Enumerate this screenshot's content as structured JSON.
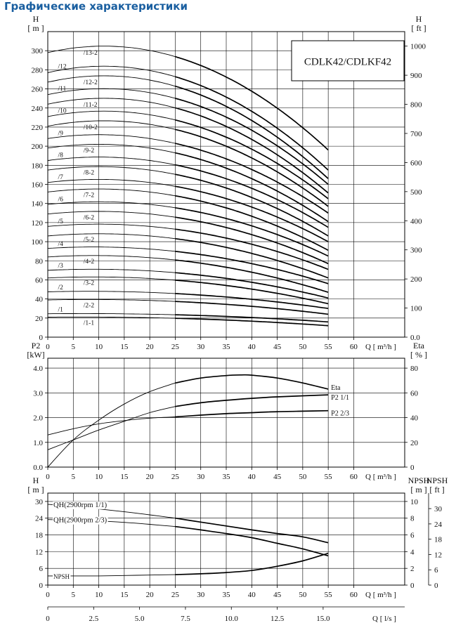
{
  "page": {
    "title": "Графические характеристики"
  },
  "chart_data": [
    {
      "id": "head",
      "type": "line",
      "title": "CDLK42/CDLKF42",
      "ylabel_left": [
        "H",
        "[ m ]"
      ],
      "ylabel_right": [
        "H",
        "[ ft ]"
      ],
      "xlabel": "Q  [ m³/h ]",
      "xlim": [
        0,
        70
      ],
      "ylim": [
        0,
        320
      ],
      "ylim_right": [
        0,
        1049.9
      ],
      "x_ticks": [
        0,
        5,
        10,
        15,
        20,
        25,
        30,
        35,
        40,
        45,
        50,
        55,
        60
      ],
      "y_ticks": [
        0,
        20,
        40,
        60,
        80,
        100,
        120,
        140,
        160,
        180,
        200,
        220,
        240,
        260,
        280,
        300
      ],
      "y_ticks_right": [
        0,
        100,
        200,
        300,
        400,
        500,
        600,
        700,
        800,
        900,
        1000
      ],
      "y_tick_labels_right": [
        "0.0",
        "100",
        "200",
        "300",
        "400",
        "500",
        "600",
        "700",
        "800",
        "900",
        "1000"
      ],
      "grid": true,
      "q_end": 55,
      "series": [
        {
          "name": "/1-1",
          "shutoff": 21,
          "peak_q": 6,
          "end": 12
        },
        {
          "name": "/1",
          "shutoff": 24.5,
          "peak_q": 7,
          "end": 16
        },
        {
          "name": "/2-2",
          "shutoff": 39,
          "peak_q": 8,
          "end": 24
        },
        {
          "name": "/2",
          "shutoff": 47.5,
          "peak_q": 8,
          "end": 30
        },
        {
          "name": "/3-2",
          "shutoff": 62,
          "peak_q": 9,
          "end": 35
        },
        {
          "name": "/3",
          "shutoff": 70,
          "peak_q": 9,
          "end": 41
        },
        {
          "name": "/4-2",
          "shutoff": 84,
          "peak_q": 9,
          "end": 47
        },
        {
          "name": "/4",
          "shutoff": 93,
          "peak_q": 9,
          "end": 56
        },
        {
          "name": "/5-2",
          "shutoff": 106,
          "peak_q": 10,
          "end": 62
        },
        {
          "name": "/5",
          "shutoff": 116,
          "peak_q": 10,
          "end": 71
        },
        {
          "name": "/6-2",
          "shutoff": 129,
          "peak_q": 10,
          "end": 77
        },
        {
          "name": "/6",
          "shutoff": 139,
          "peak_q": 10,
          "end": 85
        },
        {
          "name": "/7-2",
          "shutoff": 152,
          "peak_q": 10,
          "end": 91
        },
        {
          "name": "/7",
          "shutoff": 162,
          "peak_q": 10,
          "end": 100
        },
        {
          "name": "/8-2",
          "shutoff": 175,
          "peak_q": 10,
          "end": 106
        },
        {
          "name": "/8",
          "shutoff": 185,
          "peak_q": 10,
          "end": 115
        },
        {
          "name": "/9-2",
          "shutoff": 198,
          "peak_q": 10,
          "end": 121
        },
        {
          "name": "/9",
          "shutoff": 208,
          "peak_q": 10,
          "end": 130
        },
        {
          "name": "/10-2",
          "shutoff": 221,
          "peak_q": 11,
          "end": 137
        },
        {
          "name": "/10",
          "shutoff": 231,
          "peak_q": 11,
          "end": 145
        },
        {
          "name": "/11-2",
          "shutoff": 244,
          "peak_q": 11,
          "end": 151
        },
        {
          "name": "/11",
          "shutoff": 254,
          "peak_q": 11,
          "end": 160
        },
        {
          "name": "/12-2",
          "shutoff": 267,
          "peak_q": 11,
          "end": 166
        },
        {
          "name": "/12",
          "shutoff": 277,
          "peak_q": 11,
          "end": 175
        },
        {
          "name": "/13-2",
          "shutoff": 298,
          "peak_q": 11,
          "end": 196
        }
      ]
    },
    {
      "id": "power",
      "type": "line",
      "ylabel_left": [
        "P2",
        "[kW]"
      ],
      "ylabel_right": [
        "Eta",
        "[ % ]"
      ],
      "xlabel": "Q  [ m³/h ]",
      "xlim": [
        0,
        70
      ],
      "ylim": [
        0,
        4.4
      ],
      "ylim_right": [
        0,
        88
      ],
      "x_ticks": [
        0,
        5,
        10,
        15,
        20,
        25,
        30,
        35,
        40,
        45,
        50,
        55,
        60
      ],
      "y_ticks": [
        0,
        1,
        2,
        3,
        4
      ],
      "y_tick_labels": [
        "0.0",
        "1.0",
        "2.0",
        "3.0",
        "4.0"
      ],
      "y_ticks_right": [
        0,
        20,
        40,
        60,
        80
      ],
      "grid": true,
      "series": [
        {
          "name": "Eta",
          "axis": "right",
          "x": [
            0,
            5,
            10,
            15,
            20,
            25,
            30,
            35,
            38,
            40,
            45,
            50,
            55
          ],
          "y": [
            0,
            22,
            38,
            51,
            61,
            68,
            72,
            74,
            74.5,
            74.3,
            72,
            68,
            63
          ]
        },
        {
          "name": "P2  1/1",
          "axis": "left",
          "x": [
            0,
            5,
            10,
            15,
            20,
            25,
            30,
            35,
            40,
            45,
            50,
            55
          ],
          "y": [
            0.7,
            1.1,
            1.5,
            1.85,
            2.2,
            2.45,
            2.6,
            2.7,
            2.78,
            2.84,
            2.88,
            2.92
          ]
        },
        {
          "name": "P2  2/3",
          "axis": "left",
          "x": [
            0,
            5,
            10,
            15,
            20,
            25,
            30,
            35,
            40,
            45,
            50,
            55
          ],
          "y": [
            1.3,
            1.55,
            1.75,
            1.88,
            1.98,
            2.03,
            2.1,
            2.16,
            2.2,
            2.24,
            2.26,
            2.28
          ]
        }
      ]
    },
    {
      "id": "npsh",
      "type": "line",
      "ylabel_left": [
        "H",
        "[ m ]"
      ],
      "ylabel_right": [
        "NPSH",
        "[ m ]"
      ],
      "ylabel_right2": [
        "NPSH",
        "[ ft ]"
      ],
      "xlabel": "Q  [ m³/h ]",
      "xlabel2": "Q  [ l/s ]",
      "xlim": [
        0,
        70
      ],
      "ylim": [
        0,
        33
      ],
      "ylim_right": [
        0,
        11
      ],
      "x_ticks": [
        0,
        5,
        10,
        15,
        20,
        25,
        30,
        35,
        40,
        45,
        50,
        55,
        60
      ],
      "x2_ticks": [
        0,
        2.5,
        5.0,
        7.5,
        10.0,
        12.5,
        15.0
      ],
      "x2_tick_labels": [
        "0",
        "2.5",
        "5.0",
        "7.5",
        "10.0",
        "12.5",
        "15.0"
      ],
      "y_ticks": [
        0,
        6,
        12,
        18,
        24,
        30
      ],
      "y_ticks_right": [
        0,
        2,
        4,
        6,
        8,
        10
      ],
      "y_ticks_right2": [
        0,
        6,
        12,
        18,
        24,
        30
      ],
      "y_tick_labels_right2": [
        "0",
        "6",
        "12",
        "18",
        "24",
        "30"
      ],
      "grid": true,
      "series": [
        {
          "name": "QH(2900rpm 1/1)",
          "axis": "left",
          "x": [
            0,
            5,
            10,
            15,
            20,
            25,
            30,
            35,
            40,
            45,
            50,
            55
          ],
          "y": [
            29,
            28.2,
            27.3,
            26.3,
            25.2,
            24.0,
            22.6,
            21.2,
            19.8,
            18.5,
            17.3,
            15.2
          ]
        },
        {
          "name": "QH(2900rpm 2/3)",
          "axis": "left",
          "x": [
            0,
            5,
            10,
            15,
            20,
            25,
            30,
            35,
            40,
            45,
            50,
            55
          ],
          "y": [
            23.5,
            23.3,
            23.0,
            22.5,
            21.8,
            21.0,
            19.8,
            18.5,
            17.0,
            15.0,
            13.0,
            10.5
          ]
        },
        {
          "name": "NPSH",
          "axis": "right",
          "x": [
            0,
            5,
            10,
            15,
            20,
            25,
            30,
            35,
            40,
            45,
            50,
            55
          ],
          "y": [
            1.1,
            1.1,
            1.1,
            1.15,
            1.2,
            1.25,
            1.35,
            1.5,
            1.75,
            2.25,
            2.9,
            3.8
          ]
        }
      ]
    }
  ]
}
